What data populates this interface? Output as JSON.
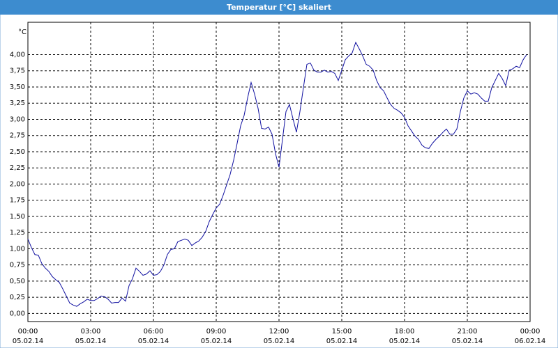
{
  "chart_data": {
    "type": "line",
    "title": "Temperatur [°C] skaliert",
    "y_label": "°C",
    "x": [
      0,
      10,
      20,
      30,
      40,
      50,
      60,
      70,
      80,
      90,
      100,
      110,
      120,
      130,
      140,
      150,
      160,
      170,
      180,
      190,
      200,
      210,
      220,
      230,
      240,
      250,
      260,
      270,
      280,
      290,
      300,
      310,
      320,
      330,
      340,
      350,
      360,
      370,
      380,
      390,
      400,
      410,
      420,
      430,
      440,
      450,
      460,
      470,
      480,
      490,
      500,
      510,
      520,
      530,
      540,
      550,
      560,
      570,
      580,
      590,
      600,
      610,
      620,
      630,
      640,
      650,
      660,
      670,
      680,
      690,
      700,
      710,
      720,
      730,
      740,
      750,
      760,
      770,
      780,
      790,
      800,
      810,
      820,
      830,
      840,
      850,
      860,
      870,
      880,
      890,
      900,
      910,
      920,
      930,
      940,
      950,
      960,
      970,
      980,
      990,
      1000,
      1010,
      1020,
      1030,
      1040,
      1050,
      1060,
      1070,
      1080,
      1090,
      1100,
      1110,
      1120,
      1130,
      1140,
      1150,
      1160,
      1170,
      1180,
      1190,
      1200,
      1210,
      1220,
      1230,
      1240,
      1250,
      1260,
      1270,
      1280,
      1290,
      1300,
      1310,
      1320,
      1330,
      1340,
      1350,
      1360,
      1370,
      1380,
      1390,
      1400,
      1410,
      1420,
      1430
    ],
    "series": [
      {
        "name": "Temperatur",
        "color": "#1010a0",
        "values": [
          1.15,
          1.02,
          0.91,
          0.9,
          0.77,
          0.7,
          0.65,
          0.57,
          0.52,
          0.48,
          0.38,
          0.27,
          0.16,
          0.13,
          0.11,
          0.15,
          0.18,
          0.22,
          0.2,
          0.2,
          0.23,
          0.27,
          0.26,
          0.22,
          0.16,
          0.17,
          0.17,
          0.24,
          0.19,
          0.43,
          0.54,
          0.7,
          0.65,
          0.59,
          0.61,
          0.66,
          0.59,
          0.6,
          0.65,
          0.75,
          0.91,
          0.99,
          1.0,
          1.11,
          1.13,
          1.15,
          1.13,
          1.05,
          1.09,
          1.12,
          1.18,
          1.27,
          1.42,
          1.53,
          1.63,
          1.69,
          1.83,
          1.99,
          2.15,
          2.37,
          2.63,
          2.9,
          3.06,
          3.33,
          3.57,
          3.39,
          3.17,
          2.86,
          2.85,
          2.88,
          2.77,
          2.47,
          2.26,
          2.69,
          3.12,
          3.23,
          3.01,
          2.8,
          3.12,
          3.49,
          3.85,
          3.87,
          3.76,
          3.73,
          3.73,
          3.76,
          3.73,
          3.74,
          3.71,
          3.6,
          3.76,
          3.92,
          3.98,
          4.03,
          4.19,
          4.09,
          3.98,
          3.85,
          3.82,
          3.76,
          3.6,
          3.49,
          3.44,
          3.33,
          3.23,
          3.17,
          3.14,
          3.1,
          3.03,
          2.9,
          2.82,
          2.74,
          2.69,
          2.6,
          2.56,
          2.55,
          2.63,
          2.69,
          2.74,
          2.8,
          2.85,
          2.77,
          2.77,
          2.85,
          3.12,
          3.33,
          3.44,
          3.39,
          3.41,
          3.39,
          3.33,
          3.28,
          3.28,
          3.49,
          3.6,
          3.71,
          3.63,
          3.52,
          3.76,
          3.78,
          3.82,
          3.8,
          3.92,
          4.0
        ]
      }
    ],
    "xlim": [
      0,
      1440
    ],
    "xticks": [
      {
        "value": 0,
        "label": "00:00"
      },
      {
        "value": 180,
        "label": "03:00"
      },
      {
        "value": 360,
        "label": "06:00"
      },
      {
        "value": 540,
        "label": "09:00"
      },
      {
        "value": 720,
        "label": "12:00"
      },
      {
        "value": 900,
        "label": "15:00"
      },
      {
        "value": 1080,
        "label": "18:00"
      },
      {
        "value": 1260,
        "label": "21:00"
      },
      {
        "value": 1440,
        "label": "00:00"
      }
    ],
    "xtick_dates": [
      "05.02.14",
      "05.02.14",
      "05.02.14",
      "05.02.14",
      "05.02.14",
      "05.02.14",
      "05.02.14",
      "05.02.14",
      "06.02.14"
    ],
    "ylim": [
      -0.125,
      4.5
    ],
    "yticks": [
      {
        "value": 0,
        "label": "0,00"
      },
      {
        "value": 0.25,
        "label": "0,25"
      },
      {
        "value": 0.5,
        "label": "0,50"
      },
      {
        "value": 0.75,
        "label": "0,75"
      },
      {
        "value": 1,
        "label": "1,00"
      },
      {
        "value": 1.25,
        "label": "1,25"
      },
      {
        "value": 1.5,
        "label": "1,50"
      },
      {
        "value": 1.75,
        "label": "1,75"
      },
      {
        "value": 2,
        "label": "2,00"
      },
      {
        "value": 2.25,
        "label": "2,25"
      },
      {
        "value": 2.5,
        "label": "2,50"
      },
      {
        "value": 2.75,
        "label": "2,75"
      },
      {
        "value": 3,
        "label": "3,00"
      },
      {
        "value": 3.25,
        "label": "3,25"
      },
      {
        "value": 3.5,
        "label": "3,50"
      },
      {
        "value": 3.75,
        "label": "3,75"
      },
      {
        "value": 4,
        "label": "4,00"
      }
    ],
    "grid": true
  }
}
